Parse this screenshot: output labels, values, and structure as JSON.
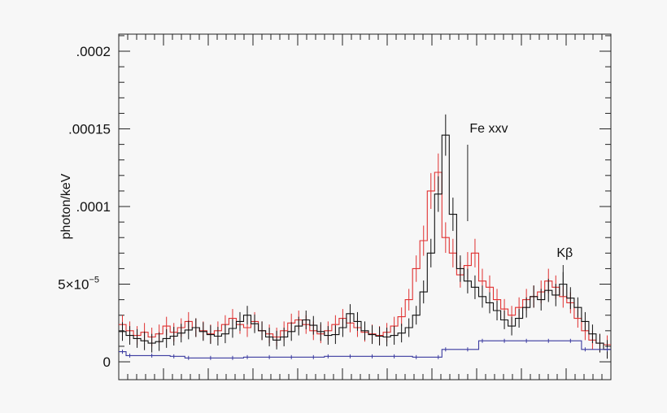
{
  "chart_data": {
    "type": "line",
    "title": "",
    "ylabel": "photon/keV",
    "xlabel": "",
    "ylim": [
      -1.15e-05,
      0.000211
    ],
    "y_tick_labels": [
      {
        "value": 0,
        "label": "0"
      },
      {
        "value": 5e-05,
        "label": "5×10",
        "exp": "−5"
      },
      {
        "value": 0.0001,
        "label": ".0001"
      },
      {
        "value": 0.00015,
        "label": ".00015"
      },
      {
        "value": 0.0002,
        "label": ".0002"
      }
    ],
    "x_tick_labels": [],
    "grid": false,
    "legend": "none",
    "annotations": [
      {
        "label": "Fe xxv",
        "bin": 47.5
      },
      {
        "label": "Kβ",
        "bin": 60.5
      }
    ],
    "colors": {
      "black": "#111111",
      "red": "#e03030",
      "blue": "#3a3aa0"
    },
    "series": [
      {
        "color": "black",
        "values": [
          1.95e-05,
          1.7e-05,
          1.5e-05,
          1.35e-05,
          1.2e-05,
          1.3e-05,
          1.5e-05,
          1.65e-05,
          1.85e-05,
          2.05e-05,
          2.2e-05,
          1.95e-05,
          1.75e-05,
          1.65e-05,
          1.8e-05,
          2.15e-05,
          2.6e-05,
          3e-05,
          2.45e-05,
          2e-05,
          1.6e-05,
          1.4e-05,
          1.6e-05,
          1.95e-05,
          2.3e-05,
          2.7e-05,
          2.35e-05,
          1.95e-05,
          1.7e-05,
          1.75e-05,
          2.2e-05,
          3.1e-05,
          2.6e-05,
          2e-05,
          1.75e-05,
          1.65e-05,
          1.6e-05,
          1.7e-05,
          1.85e-05,
          2.2e-05,
          3e-05,
          4.5e-05,
          7e-05,
          0.000108,
          0.000146,
          9.5e-05,
          6e-05,
          5.2e-05,
          4.8e-05,
          4.2e-05,
          3.8e-05,
          3.3e-05,
          2.7e-05,
          2.3e-05,
          2.8e-05,
          3.5e-05,
          4.2e-05,
          4e-05,
          4.6e-05,
          4.3e-05,
          5e-05,
          4.1e-05,
          3.5e-05,
          2.6e-05,
          1.8e-05,
          1.2e-05,
          8e-06
        ]
      },
      {
        "color": "red",
        "values": [
          2.4e-05,
          2e-05,
          1.7e-05,
          1.9e-05,
          1.6e-05,
          1.8e-05,
          2.3e-05,
          1.9e-05,
          2.2e-05,
          2.6e-05,
          2.2e-05,
          2e-05,
          1.8e-05,
          2e-05,
          2.4e-05,
          2.8e-05,
          2.4e-05,
          2.2e-05,
          2.6e-05,
          2e-05,
          1.8e-05,
          1.6e-05,
          2e-05,
          2.5e-05,
          2.7e-05,
          2.4e-05,
          2e-05,
          1.8e-05,
          2e-05,
          2.4e-05,
          2.8e-05,
          2.5e-05,
          2.2e-05,
          1.9e-05,
          1.8e-05,
          1.7e-05,
          1.9e-05,
          2.3e-05,
          2.9e-05,
          4e-05,
          6e-05,
          7.8e-05,
          0.00011,
          0.000122,
          8e-05,
          7e-05,
          5.6e-05,
          6.2e-05,
          7e-05,
          5.2e-05,
          4.8e-05,
          4e-05,
          3.4e-05,
          3e-05,
          3.5e-05,
          4e-05,
          4.2e-05,
          4.5e-05,
          5.2e-05,
          4.8e-05,
          4.2e-05,
          3.8e-05,
          2.8e-05,
          2e-05,
          1.4e-05,
          1.2e-05,
          1.1e-05
        ]
      },
      {
        "color": "blue",
        "steps": [
          {
            "x0": 0,
            "x1": 1,
            "y": 6.5e-06
          },
          {
            "x0": 1,
            "x1": 7,
            "y": 4e-06
          },
          {
            "x0": 7,
            "x1": 9,
            "y": 3.5e-06
          },
          {
            "x0": 9,
            "x1": 17,
            "y": 2.5e-06
          },
          {
            "x0": 17,
            "x1": 28,
            "y": 3e-06
          },
          {
            "x0": 28,
            "x1": 40,
            "y": 3.5e-06
          },
          {
            "x0": 40,
            "x1": 44,
            "y": 3e-06
          },
          {
            "x0": 44,
            "x1": 49,
            "y": 8e-06
          },
          {
            "x0": 49,
            "x1": 63,
            "y": 1.35e-05
          },
          {
            "x0": 63,
            "x1": 67,
            "y": 8e-06
          }
        ]
      }
    ]
  }
}
